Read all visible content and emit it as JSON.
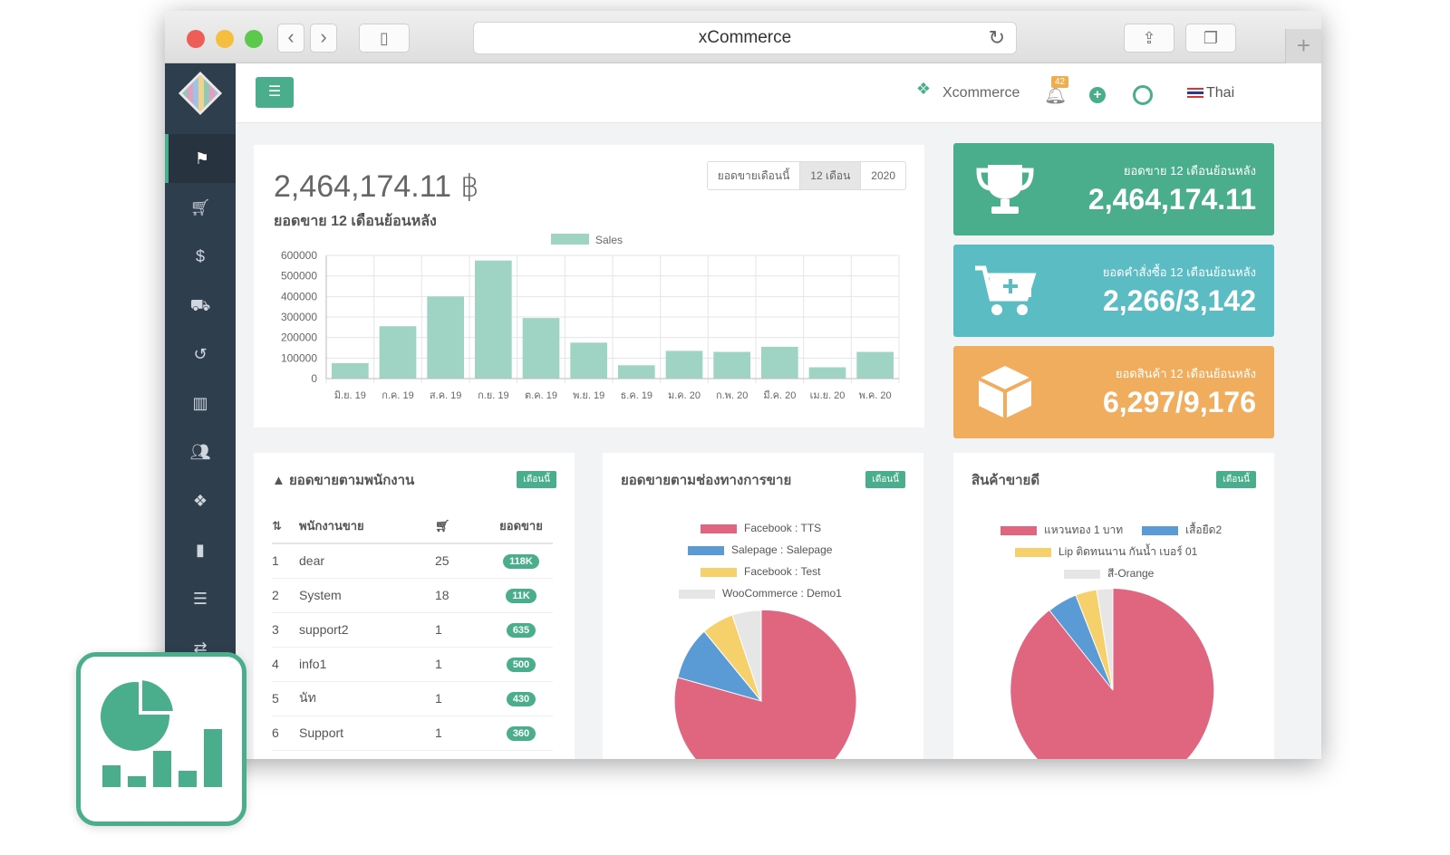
{
  "browser": {
    "url_title": "xCommerce"
  },
  "topbar": {
    "brand": "Xcommerce",
    "notif_count": "42",
    "language": "Thai"
  },
  "sales": {
    "total": "2,464,174.11 ฿",
    "subtitle": "ยอดขาย 12 เดือนย้อนหลัง",
    "tabs": [
      "ยอดขายเดือนนี้",
      "12 เดือน",
      "2020"
    ],
    "selected_tab": "12 เดือน"
  },
  "chart_data": {
    "type": "bar",
    "legend": [
      "Sales"
    ],
    "categories": [
      "มิ.ย. 19",
      "ก.ค. 19",
      "ส.ค. 19",
      "ก.ย. 19",
      "ต.ค. 19",
      "พ.ย. 19",
      "ธ.ค. 19",
      "ม.ค. 20",
      "ก.พ. 20",
      "มี.ค. 20",
      "เม.ย. 20",
      "พ.ค. 20"
    ],
    "series": [
      {
        "name": "Sales",
        "values": [
          75000,
          255000,
          400000,
          575000,
          295000,
          175000,
          65000,
          135000,
          130000,
          155000,
          55000,
          130000
        ]
      }
    ],
    "yticks": [
      "600000",
      "500000",
      "400000",
      "300000",
      "200000",
      "100000",
      "0"
    ],
    "ylim": [
      0,
      600000
    ],
    "grid": true,
    "legend_position": "top",
    "color": "#9fd4c5"
  },
  "stats": [
    {
      "label": "ยอดขาย 12 เดือนย้อนหลัง",
      "value": "2,464,174.11",
      "color": "#4aae8c",
      "icon": "trophy-icon"
    },
    {
      "label": "ยอดคำสั่งซื้อ 12 เดือนย้อนหลัง",
      "value": "2,266/3,142",
      "color": "#5bbcc4",
      "icon": "cart-plus-icon"
    },
    {
      "label": "ยอดสินค้า 12 เดือนย้อนหลัง",
      "value": "6,297/9,176",
      "color": "#f0ad5e",
      "icon": "box-icon"
    }
  ],
  "employee_card": {
    "title": "ยอดขายตามพนักงาน",
    "badge": "เดือนนี้",
    "col_employee": "พนักงานขาย",
    "col_sales": "ยอดขาย",
    "rows": [
      {
        "no": "1",
        "name": "dear",
        "orders": "25",
        "sales": "118K"
      },
      {
        "no": "2",
        "name": "System",
        "orders": "18",
        "sales": "11K"
      },
      {
        "no": "3",
        "name": "support2",
        "orders": "1",
        "sales": "635"
      },
      {
        "no": "4",
        "name": "info1",
        "orders": "1",
        "sales": "500"
      },
      {
        "no": "5",
        "name": "นัท",
        "orders": "1",
        "sales": "430"
      },
      {
        "no": "6",
        "name": "Support",
        "orders": "1",
        "sales": "360"
      }
    ]
  },
  "channel_card": {
    "title": "ยอดขายตามช่องทางการขาย",
    "badge": "เดือนนี้",
    "legend": [
      {
        "label": "Facebook : TTS",
        "color": "#e06680"
      },
      {
        "label": "Salepage : Salepage",
        "color": "#5b9bd5"
      },
      {
        "label": "Facebook : Test",
        "color": "#f5d06b"
      },
      {
        "label": "WooCommerce : Demo1",
        "color": "#e6e6e6"
      }
    ]
  },
  "product_card": {
    "title": "สินค้าขายดี",
    "badge": "เดือนนี้",
    "legend": [
      {
        "label": "แหวนทอง 1 บาท",
        "color": "#e06680"
      },
      {
        "label": "เสื้อยืด2",
        "color": "#5b9bd5"
      },
      {
        "label": "Lip ติดทนนาน กันน้ำ เบอร์ 01",
        "color": "#f5d06b"
      },
      {
        "label": "สี-Orange",
        "color": "#e6e6e6"
      }
    ]
  }
}
